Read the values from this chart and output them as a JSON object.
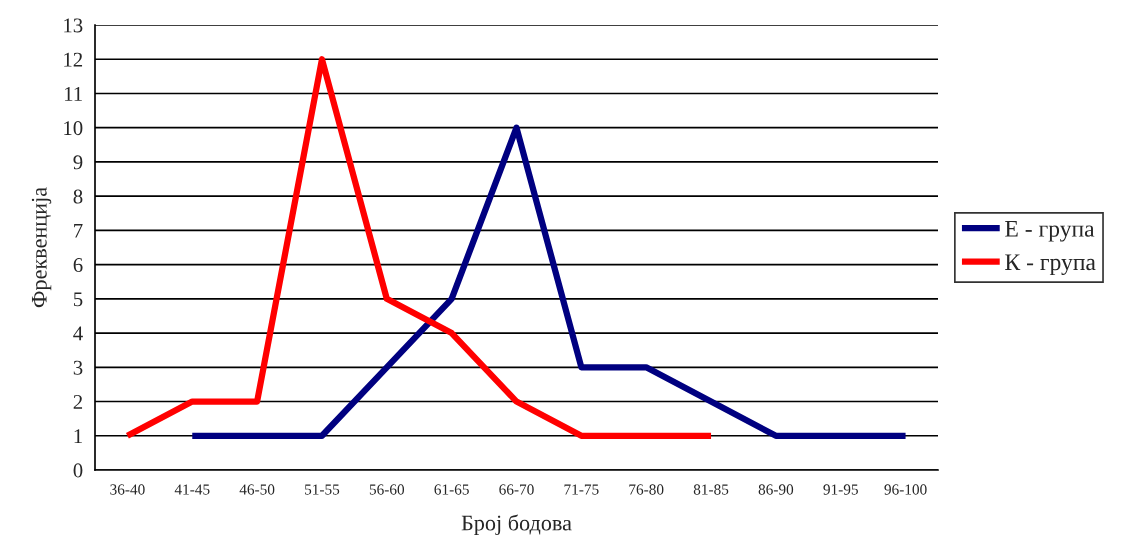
{
  "chart_data": {
    "type": "line",
    "xlabel": "Број бодова",
    "ylabel": "Фреквенција",
    "categories": [
      "36-40",
      "41-45",
      "46-50",
      "51-55",
      "56-60",
      "61-65",
      "66-70",
      "71-75",
      "76-80",
      "81-85",
      "86-90",
      "91-95",
      "96-100"
    ],
    "series": [
      {
        "name": "Е - група",
        "color": "#000080",
        "values": [
          null,
          1,
          1,
          1,
          3,
          5,
          10,
          3,
          3,
          2,
          1,
          1,
          1
        ]
      },
      {
        "name": "К - група",
        "color": "#ff0000",
        "values": [
          1,
          2,
          2,
          12,
          5,
          4,
          2,
          1,
          1,
          1,
          null,
          null,
          null
        ]
      }
    ],
    "ylim": [
      0,
      13
    ],
    "yticks": [
      0,
      1,
      2,
      3,
      4,
      5,
      6,
      7,
      8,
      9,
      10,
      11,
      12,
      13
    ],
    "grid": "y",
    "legend": "right",
    "marker": "none",
    "line_style": "solid"
  }
}
